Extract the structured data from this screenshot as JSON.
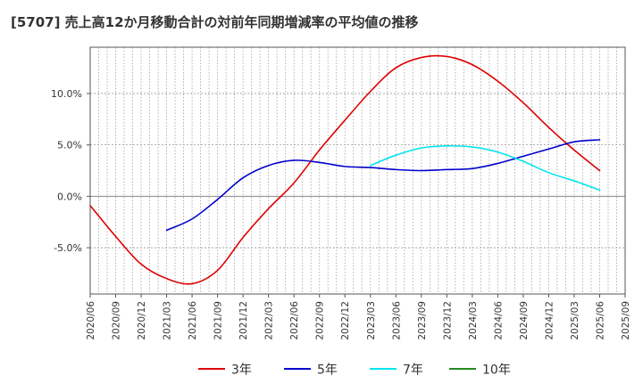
{
  "chart_data": {
    "type": "line",
    "title": "[5707]  売上高12か月移動合計の対前年同期増減率の平均値の推移",
    "xlabel": "",
    "ylabel": "",
    "ylim": [
      -9.5,
      14.5
    ],
    "y_ticks": [
      {
        "value": 10,
        "label": "10.0%"
      },
      {
        "value": 5,
        "label": "5.0%"
      },
      {
        "value": 0,
        "label": "0.0%"
      },
      {
        "value": -5,
        "label": "-5.0%"
      }
    ],
    "x_ticks": [
      "2020/06",
      "2020/09",
      "2020/12",
      "2021/03",
      "2021/06",
      "2021/09",
      "2021/12",
      "2022/03",
      "2022/06",
      "2022/09",
      "2022/12",
      "2023/03",
      "2023/06",
      "2023/09",
      "2023/12",
      "2024/03",
      "2024/06",
      "2024/09",
      "2024/12",
      "2025/03",
      "2025/06",
      "2025/09"
    ],
    "grid": true,
    "legend_position": "bottom",
    "series": [
      {
        "name": "3年",
        "color": "#dd0000",
        "points": [
          [
            "2020/06",
            -0.9
          ],
          [
            "2020/09",
            -3.9
          ],
          [
            "2020/12",
            -6.6
          ],
          [
            "2021/03",
            -8.0
          ],
          [
            "2021/06",
            -8.5
          ],
          [
            "2021/09",
            -7.2
          ],
          [
            "2021/12",
            -4.0
          ],
          [
            "2022/03",
            -1.2
          ],
          [
            "2022/06",
            1.3
          ],
          [
            "2022/09",
            4.5
          ],
          [
            "2022/12",
            7.4
          ],
          [
            "2023/03",
            10.2
          ],
          [
            "2023/06",
            12.5
          ],
          [
            "2023/09",
            13.5
          ],
          [
            "2023/12",
            13.6
          ],
          [
            "2024/03",
            12.8
          ],
          [
            "2024/06",
            11.2
          ],
          [
            "2024/09",
            9.1
          ],
          [
            "2024/12",
            6.7
          ],
          [
            "2025/03",
            4.5
          ],
          [
            "2025/06",
            2.5
          ]
        ]
      },
      {
        "name": "5年",
        "color": "#0000cc",
        "points": [
          [
            "2021/03",
            -3.3
          ],
          [
            "2021/06",
            -2.2
          ],
          [
            "2021/09",
            -0.3
          ],
          [
            "2021/12",
            1.8
          ],
          [
            "2022/03",
            3.0
          ],
          [
            "2022/06",
            3.5
          ],
          [
            "2022/09",
            3.3
          ],
          [
            "2022/12",
            2.9
          ],
          [
            "2023/03",
            2.8
          ],
          [
            "2023/06",
            2.6
          ],
          [
            "2023/09",
            2.5
          ],
          [
            "2023/12",
            2.6
          ],
          [
            "2024/03",
            2.7
          ],
          [
            "2024/06",
            3.2
          ],
          [
            "2024/09",
            3.9
          ],
          [
            "2024/12",
            4.6
          ],
          [
            "2025/03",
            5.3
          ],
          [
            "2025/06",
            5.5
          ]
        ]
      },
      {
        "name": "7年",
        "color": "#00e5ee",
        "points": [
          [
            "2023/03",
            3.0
          ],
          [
            "2023/06",
            4.0
          ],
          [
            "2023/09",
            4.7
          ],
          [
            "2023/12",
            4.9
          ],
          [
            "2024/03",
            4.8
          ],
          [
            "2024/06",
            4.3
          ],
          [
            "2024/09",
            3.4
          ],
          [
            "2024/12",
            2.3
          ],
          [
            "2025/03",
            1.5
          ],
          [
            "2025/06",
            0.6
          ]
        ]
      },
      {
        "name": "10年",
        "color": "#228b22",
        "points": []
      }
    ]
  }
}
